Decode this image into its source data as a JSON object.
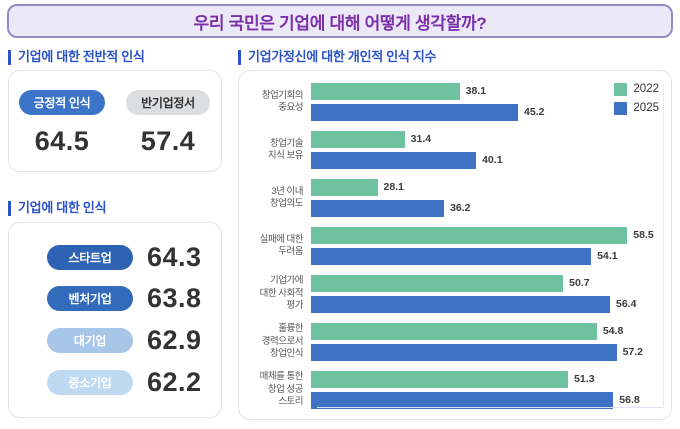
{
  "banner": {
    "title": "우리 국민은 기업에 대해 어떻게 생각할까?"
  },
  "colors": {
    "banner_bg": "#EBE8F7",
    "banner_border": "#9488C5",
    "banner_text": "#7B2FA8",
    "section_header_blue": "#2B52C8",
    "series_2022_green": "#6FC19F",
    "series_2025_blue": "#3E72C4"
  },
  "overall_section": {
    "header": "기업에 대한 전반적 인식",
    "items": [
      {
        "label": "긍정적 인식",
        "value": "64.5",
        "pill_bg": "#3B74C9",
        "pill_fg": "#FFFFFF"
      },
      {
        "label": "반기업정서",
        "value": "57.4",
        "pill_bg": "#DCDEE0",
        "pill_fg": "#333333"
      }
    ]
  },
  "company_section": {
    "header": "기업에 대한 인식",
    "items": [
      {
        "label": "스타트업",
        "value": "64.3",
        "pill_bg": "#2E63B3",
        "pill_fg": "#FFFFFF"
      },
      {
        "label": "벤처기업",
        "value": "63.8",
        "pill_bg": "#336AB9",
        "pill_fg": "#FFFFFF"
      },
      {
        "label": "대기업",
        "value": "62.9",
        "pill_bg": "#A8C6E8",
        "pill_fg": "#FFFFFF"
      },
      {
        "label": "중소기업",
        "value": "62.2",
        "pill_bg": "#BFD9F2",
        "pill_fg": "#FFFFFF"
      }
    ]
  },
  "chart_section": {
    "header": "기업가정신에 대한 개인적 인식 지수"
  },
  "chart_data": {
    "type": "bar",
    "orientation": "horizontal",
    "title": "기업가정신에 대한 개인적 인식 지수",
    "categories": [
      "창업기회의\n중요성",
      "창업기술\n지식 보유",
      "3년 이내\n창업의도",
      "실패에 대한\n두려움",
      "기업가에\n대한 사회적\n평가",
      "훌륭한\n경력으로서\n창업인식",
      "매체를 통한\n창업 성공\n스토리"
    ],
    "series": [
      {
        "name": "2022",
        "color": "#6FC19F",
        "values": [
          38.1,
          31.4,
          28.1,
          58.5,
          50.7,
          54.8,
          51.3
        ]
      },
      {
        "name": "2025",
        "color": "#3E72C4",
        "values": [
          45.2,
          40.1,
          36.2,
          54.1,
          56.4,
          57.2,
          56.8
        ]
      }
    ],
    "xlim": [
      20,
      62
    ],
    "legend_position": "top-right",
    "grid": false,
    "value_labels": true
  }
}
